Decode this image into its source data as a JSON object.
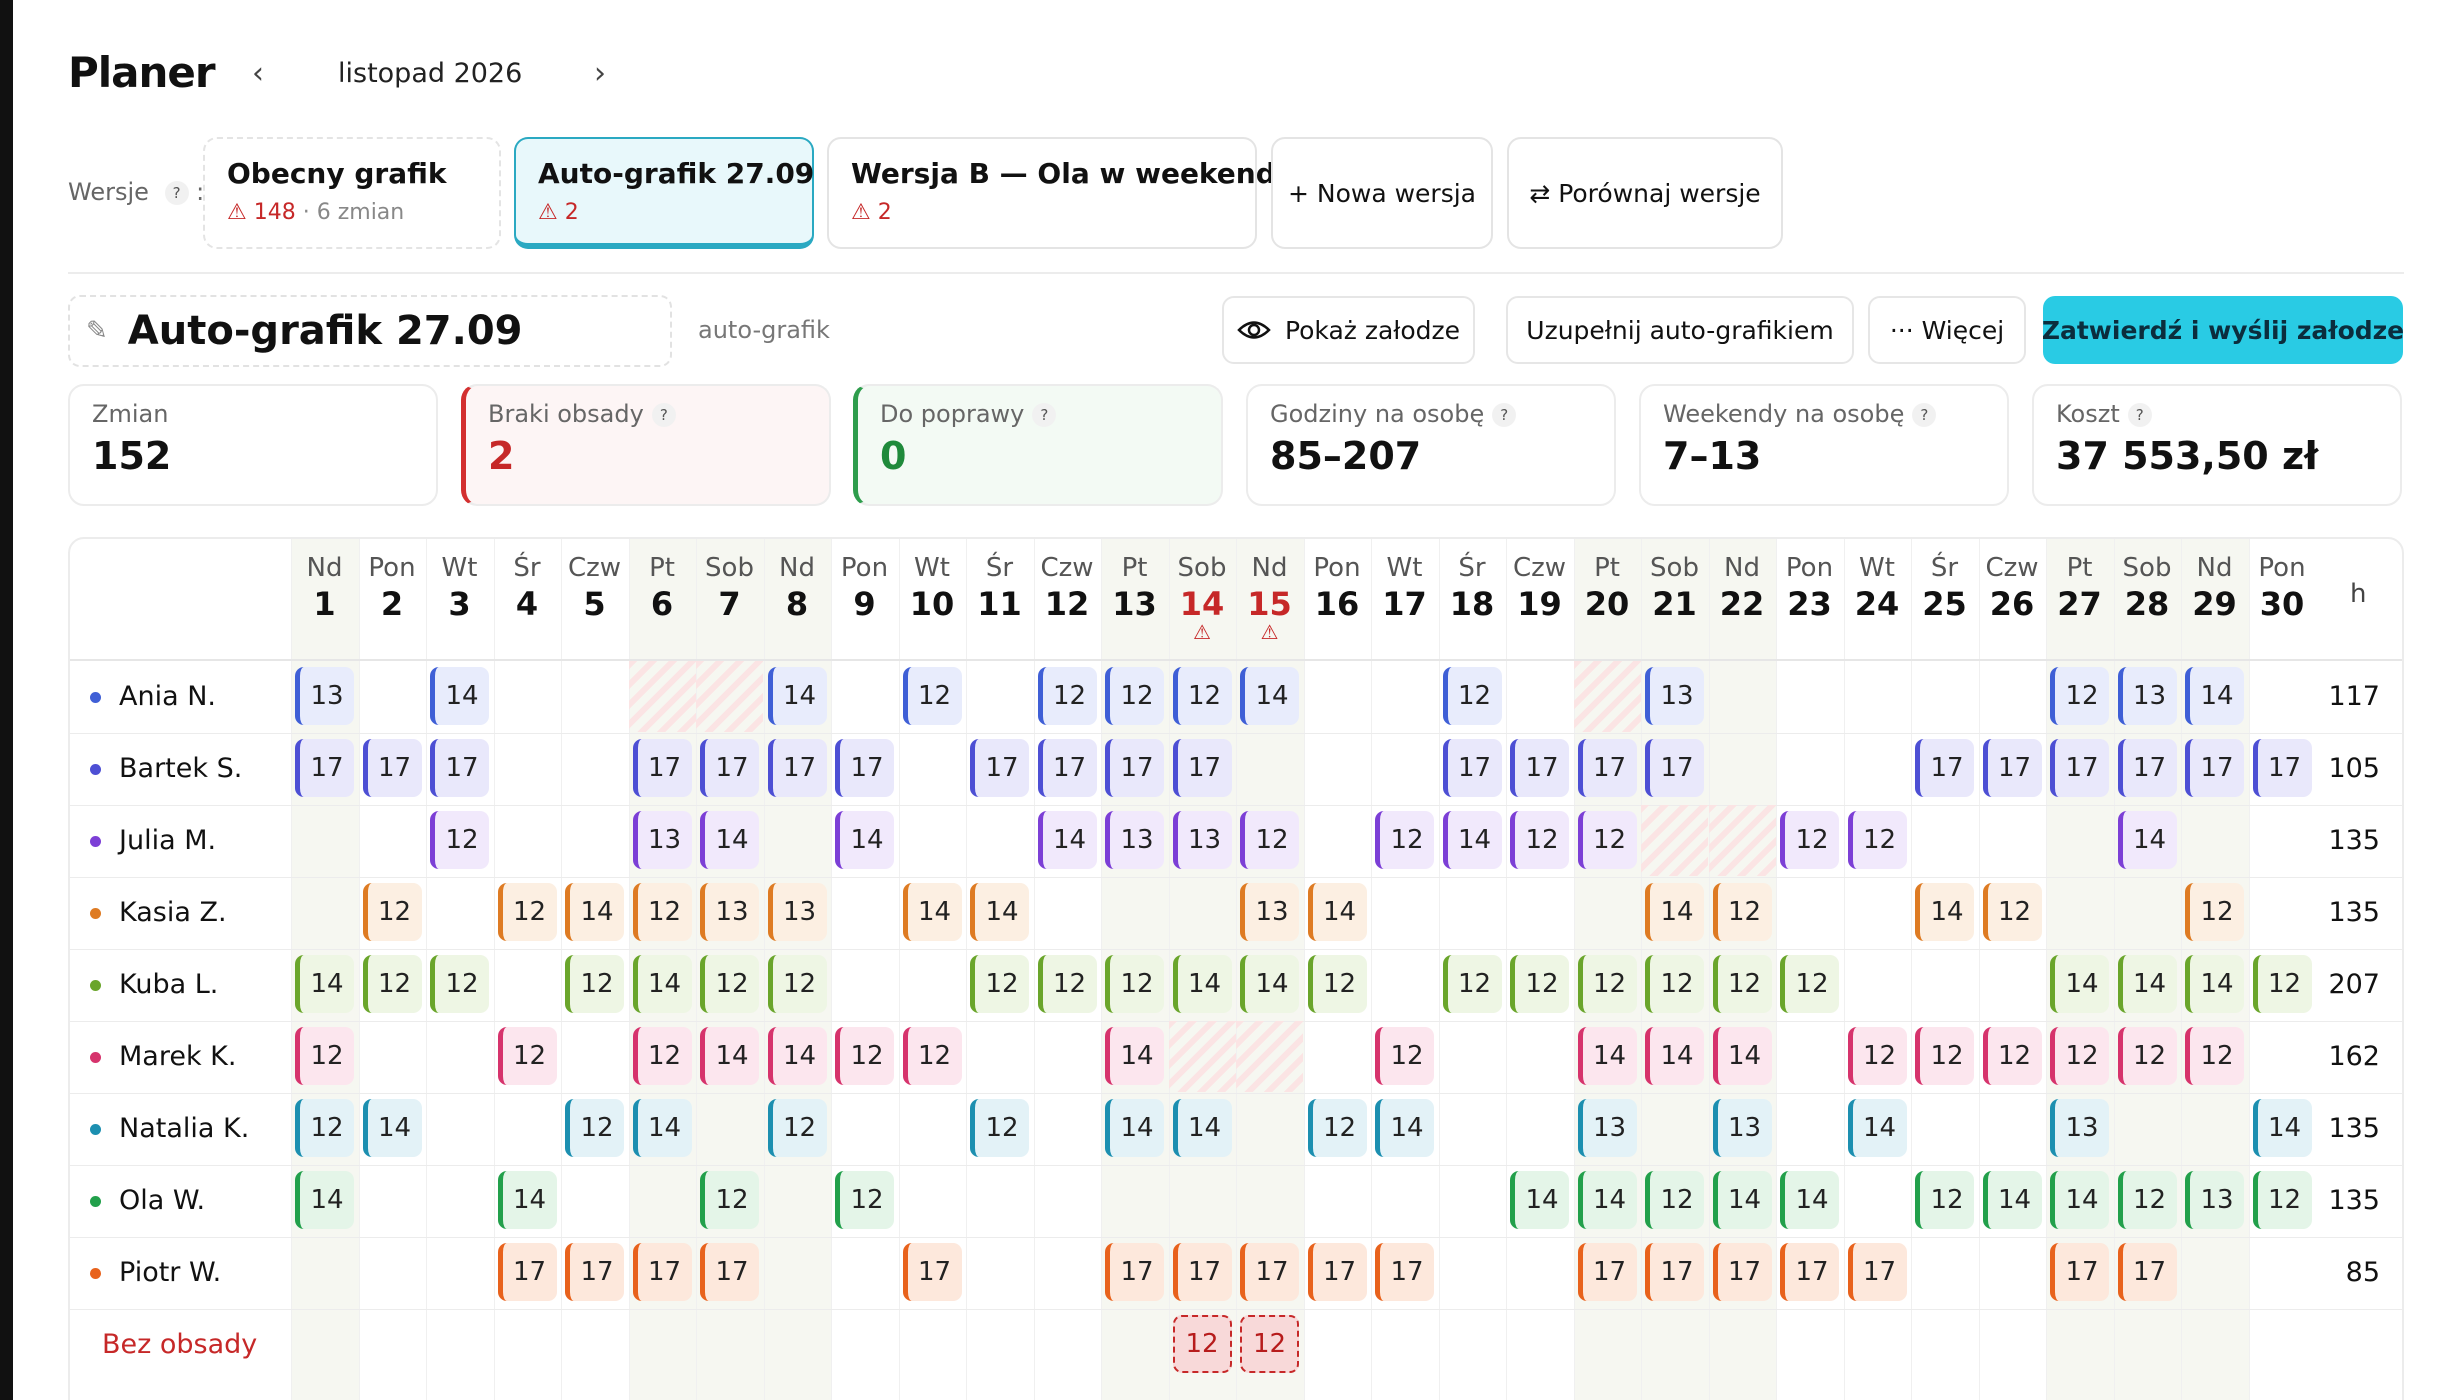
{
  "header": {
    "title": "Planer",
    "month": "listopad 2026",
    "prev_icon": "‹",
    "next_icon": "›"
  },
  "versions": {
    "label": "Wersje",
    "help": "?",
    "items": [
      {
        "name": "Obecny grafik",
        "warnings": "148",
        "extra": "· 6 zmian"
      },
      {
        "name": "Auto-grafik 27.09",
        "warnings": "2",
        "extra": ""
      },
      {
        "name": "Wersja B — Ola w weekendy",
        "warnings": "2",
        "extra": ""
      }
    ],
    "new_label": "+ Nowa wersja",
    "compare_label": "⇄ Porównaj wersje"
  },
  "schedule": {
    "name": "Auto-grafik 27.09",
    "tag": "auto-grafik",
    "show_label": "Pokaż załodze",
    "fill_label": "Uzupełnij auto-grafikiem",
    "more_label": "··· Więcej",
    "approve_label": "Zatwierdź i wyślij załodze"
  },
  "stats": [
    {
      "label": "Zmian",
      "value": "152",
      "help": false
    },
    {
      "label": "Braki obsady",
      "value": "2",
      "help": true
    },
    {
      "label": "Do poprawy",
      "value": "0",
      "help": true
    },
    {
      "label": "Godziny na osobę",
      "value": "85–207",
      "help": true
    },
    {
      "label": "Weekendy na osobę",
      "value": "7–13",
      "help": true
    },
    {
      "label": "Koszt",
      "value": "37 553,50 zł",
      "help": true
    }
  ],
  "grid": {
    "hours_header": "h",
    "days": [
      {
        "n": "Nd",
        "d": "1"
      },
      {
        "n": "Pon",
        "d": "2"
      },
      {
        "n": "Wt",
        "d": "3"
      },
      {
        "n": "Śr",
        "d": "4"
      },
      {
        "n": "Czw",
        "d": "5"
      },
      {
        "n": "Pt",
        "d": "6"
      },
      {
        "n": "Sob",
        "d": "7"
      },
      {
        "n": "Nd",
        "d": "8"
      },
      {
        "n": "Pon",
        "d": "9"
      },
      {
        "n": "Wt",
        "d": "10"
      },
      {
        "n": "Śr",
        "d": "11"
      },
      {
        "n": "Czw",
        "d": "12"
      },
      {
        "n": "Pt",
        "d": "13"
      },
      {
        "n": "Sob",
        "d": "14",
        "alert": true
      },
      {
        "n": "Nd",
        "d": "15",
        "alert": true
      },
      {
        "n": "Pon",
        "d": "16"
      },
      {
        "n": "Wt",
        "d": "17"
      },
      {
        "n": "Śr",
        "d": "18"
      },
      {
        "n": "Czw",
        "d": "19"
      },
      {
        "n": "Pt",
        "d": "20"
      },
      {
        "n": "Sob",
        "d": "21"
      },
      {
        "n": "Nd",
        "d": "22"
      },
      {
        "n": "Pon",
        "d": "23"
      },
      {
        "n": "Wt",
        "d": "24"
      },
      {
        "n": "Śr",
        "d": "25"
      },
      {
        "n": "Czw",
        "d": "26"
      },
      {
        "n": "Pt",
        "d": "27"
      },
      {
        "n": "Sob",
        "d": "28"
      },
      {
        "n": "Nd",
        "d": "29"
      },
      {
        "n": "Pon",
        "d": "30"
      }
    ],
    "weekend_days": [
      1,
      6,
      7,
      8,
      13,
      14,
      15,
      20,
      21,
      22,
      27,
      28,
      29
    ],
    "people": [
      {
        "name": "Ania N.",
        "color": "#3f5fd6",
        "bg": "#e8ecfc",
        "hours": "117",
        "shifts": {
          "1": "13",
          "3": "14",
          "8": "14",
          "10": "12",
          "12": "12",
          "13": "12",
          "14": "12",
          "15": "14",
          "18": "12",
          "21": "13",
          "27": "12",
          "28": "13",
          "29": "14"
        },
        "hatched": [
          6,
          7,
          20
        ]
      },
      {
        "name": "Bartek S.",
        "color": "#4d4fd4",
        "bg": "#e9e8fb",
        "hours": "105",
        "shifts": {
          "1": "17",
          "2": "17",
          "3": "17",
          "6": "17",
          "7": "17",
          "8": "17",
          "9": "17",
          "11": "17",
          "12": "17",
          "13": "17",
          "14": "17",
          "18": "17",
          "19": "17",
          "20": "17",
          "21": "17",
          "25": "17",
          "26": "17",
          "27": "17",
          "28": "17",
          "29": "17",
          "30": "17"
        },
        "hatched": []
      },
      {
        "name": "Julia M.",
        "color": "#7c3fd6",
        "bg": "#f1e9fc",
        "hours": "135",
        "shifts": {
          "3": "12",
          "6": "13",
          "7": "14",
          "9": "14",
          "12": "14",
          "13": "13",
          "14": "13",
          "15": "12",
          "17": "12",
          "18": "14",
          "19": "12",
          "20": "12",
          "23": "12",
          "24": "12",
          "28": "14"
        },
        "hatched": [
          21,
          22
        ]
      },
      {
        "name": "Kasia Z.",
        "color": "#de7b23",
        "bg": "#fcefe2",
        "hours": "135",
        "shifts": {
          "2": "12",
          "4": "12",
          "5": "14",
          "6": "12",
          "7": "13",
          "8": "13",
          "10": "14",
          "11": "14",
          "15": "13",
          "16": "14",
          "21": "14",
          "22": "12",
          "25": "14",
          "26": "12",
          "29": "12"
        },
        "hatched": []
      },
      {
        "name": "Kuba L.",
        "color": "#6aa52b",
        "bg": "#eef6e4",
        "hours": "207",
        "shifts": {
          "1": "14",
          "2": "12",
          "3": "12",
          "5": "12",
          "6": "14",
          "7": "12",
          "8": "12",
          "11": "12",
          "12": "12",
          "13": "12",
          "14": "14",
          "15": "14",
          "16": "12",
          "18": "12",
          "19": "12",
          "20": "12",
          "21": "12",
          "22": "12",
          "23": "12",
          "27": "14",
          "28": "14",
          "29": "14",
          "30": "12"
        },
        "hatched": []
      },
      {
        "name": "Marek K.",
        "color": "#d6336c",
        "bg": "#fce6ee",
        "hours": "162",
        "shifts": {
          "1": "12",
          "4": "12",
          "6": "12",
          "7": "14",
          "8": "14",
          "9": "12",
          "10": "12",
          "13": "14",
          "17": "12",
          "20": "14",
          "21": "14",
          "22": "14",
          "24": "12",
          "25": "12",
          "26": "12",
          "27": "12",
          "28": "12",
          "29": "12"
        },
        "hatched": [
          14,
          15
        ]
      },
      {
        "name": "Natalia K.",
        "color": "#1c8fb0",
        "bg": "#e3f2f7",
        "hours": "135",
        "shifts": {
          "1": "12",
          "2": "14",
          "5": "12",
          "6": "14",
          "8": "12",
          "11": "12",
          "13": "14",
          "14": "14",
          "16": "12",
          "17": "14",
          "20": "13",
          "22": "13",
          "24": "14",
          "27": "13",
          "30": "14"
        },
        "hatched": []
      },
      {
        "name": "Ola W.",
        "color": "#22a04b",
        "bg": "#e4f5e8",
        "hours": "135",
        "shifts": {
          "1": "14",
          "4": "14",
          "7": "12",
          "9": "12",
          "19": "14",
          "20": "14",
          "21": "12",
          "22": "14",
          "23": "14",
          "25": "12",
          "26": "14",
          "27": "14",
          "28": "12",
          "29": "13",
          "30": "12"
        },
        "hatched": []
      },
      {
        "name": "Piotr W.",
        "color": "#e8621c",
        "bg": "#fde8dc",
        "hours": "85",
        "shifts": {
          "4": "17",
          "5": "17",
          "6": "17",
          "7": "17",
          "10": "17",
          "13": "17",
          "14": "17",
          "15": "17",
          "16": "17",
          "17": "17",
          "20": "17",
          "21": "17",
          "22": "17",
          "23": "17",
          "24": "17",
          "27": "17",
          "28": "17"
        },
        "hatched": []
      }
    ],
    "unstaffed": {
      "label": "Bez obsady",
      "shifts": {
        "14": "12",
        "15": "12"
      }
    }
  }
}
